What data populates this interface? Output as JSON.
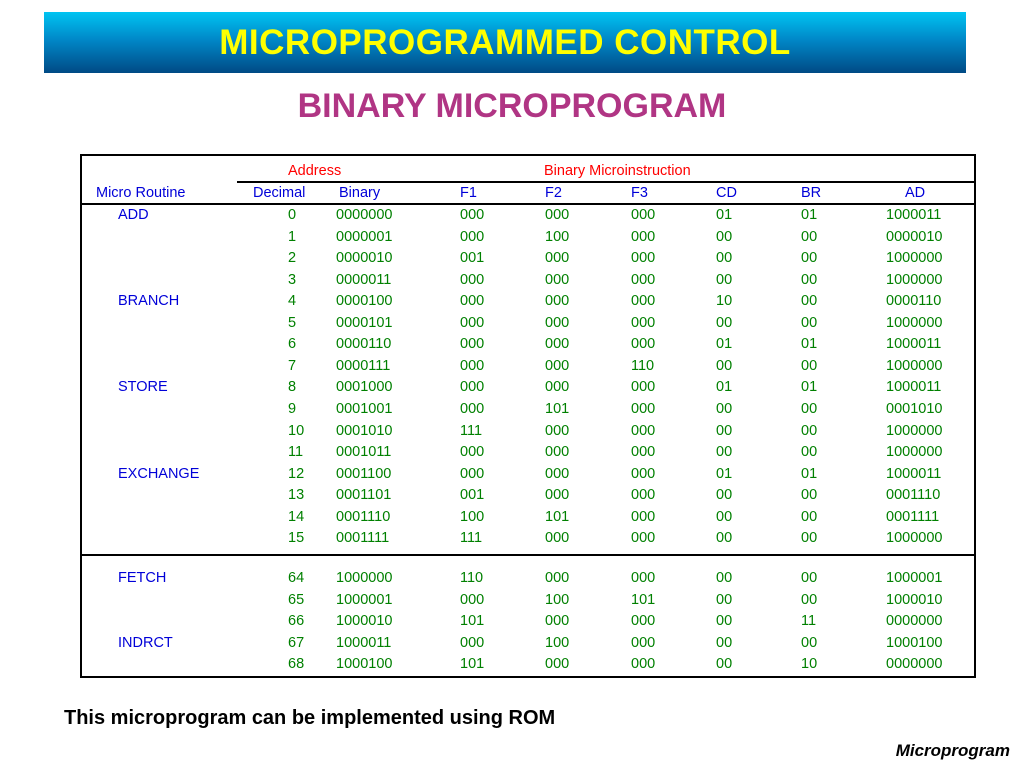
{
  "header": {
    "title": "MICROPROGRAMMED  CONTROL"
  },
  "subtitle": "BINARY  MICROPROGRAM",
  "table": {
    "group_headers": {
      "address": "Address",
      "binary_microinstruction": "Binary Microinstruction"
    },
    "columns": {
      "routine": "Micro Routine",
      "decimal": "Decimal",
      "binary": "Binary",
      "f1": "F1",
      "f2": "F2",
      "f3": "F3",
      "cd": "CD",
      "br": "BR",
      "ad": "AD"
    },
    "rows": [
      {
        "routine": "ADD",
        "decimal": "0",
        "binary": "0000000",
        "f1": "000",
        "f2": "000",
        "f3": "000",
        "cd": "01",
        "br": "01",
        "ad": "1000011"
      },
      {
        "routine": "",
        "decimal": "1",
        "binary": "0000001",
        "f1": "000",
        "f2": "100",
        "f3": "000",
        "cd": "00",
        "br": "00",
        "ad": "0000010"
      },
      {
        "routine": "",
        "decimal": "2",
        "binary": "0000010",
        "f1": "001",
        "f2": "000",
        "f3": "000",
        "cd": "00",
        "br": "00",
        "ad": "1000000"
      },
      {
        "routine": "",
        "decimal": "3",
        "binary": "0000011",
        "f1": "000",
        "f2": "000",
        "f3": "000",
        "cd": "00",
        "br": "00",
        "ad": "1000000"
      },
      {
        "routine": "BRANCH",
        "decimal": "4",
        "binary": "0000100",
        "f1": "000",
        "f2": "000",
        "f3": "000",
        "cd": "10",
        "br": "00",
        "ad": "0000110"
      },
      {
        "routine": "",
        "decimal": "5",
        "binary": "0000101",
        "f1": "000",
        "f2": "000",
        "f3": "000",
        "cd": "00",
        "br": "00",
        "ad": "1000000"
      },
      {
        "routine": "",
        "decimal": "6",
        "binary": "0000110",
        "f1": "000",
        "f2": "000",
        "f3": "000",
        "cd": "01",
        "br": "01",
        "ad": "1000011"
      },
      {
        "routine": "",
        "decimal": "7",
        "binary": "0000111",
        "f1": "000",
        "f2": "000",
        "f3": "110",
        "cd": "00",
        "br": "00",
        "ad": "1000000"
      },
      {
        "routine": "STORE",
        "decimal": "8",
        "binary": "0001000",
        "f1": "000",
        "f2": "000",
        "f3": "000",
        "cd": "01",
        "br": "01",
        "ad": "1000011"
      },
      {
        "routine": "",
        "decimal": "9",
        "binary": "0001001",
        "f1": "000",
        "f2": "101",
        "f3": "000",
        "cd": "00",
        "br": "00",
        "ad": "0001010"
      },
      {
        "routine": "",
        "decimal": "10",
        "binary": "0001010",
        "f1": "111",
        "f2": "000",
        "f3": "000",
        "cd": "00",
        "br": "00",
        "ad": "1000000"
      },
      {
        "routine": "",
        "decimal": "11",
        "binary": "0001011",
        "f1": "000",
        "f2": "000",
        "f3": "000",
        "cd": "00",
        "br": "00",
        "ad": "1000000"
      },
      {
        "routine": "EXCHANGE",
        "decimal": "12",
        "binary": "0001100",
        "f1": "000",
        "f2": "000",
        "f3": "000",
        "cd": "01",
        "br": "01",
        "ad": "1000011"
      },
      {
        "routine": "",
        "decimal": "13",
        "binary": "0001101",
        "f1": "001",
        "f2": "000",
        "f3": "000",
        "cd": "00",
        "br": "00",
        "ad": "0001110"
      },
      {
        "routine": "",
        "decimal": "14",
        "binary": "0001110",
        "f1": "100",
        "f2": "101",
        "f3": "000",
        "cd": "00",
        "br": "00",
        "ad": "0001111"
      },
      {
        "routine": "",
        "decimal": "15",
        "binary": "0001111",
        "f1": "111",
        "f2": "000",
        "f3": "000",
        "cd": "00",
        "br": "00",
        "ad": "1000000"
      },
      {
        "routine": "FETCH",
        "decimal": "64",
        "binary": "1000000",
        "f1": "110",
        "f2": "000",
        "f3": "000",
        "cd": "00",
        "br": "00",
        "ad": "1000001"
      },
      {
        "routine": "",
        "decimal": "65",
        "binary": "1000001",
        "f1": "000",
        "f2": "100",
        "f3": "101",
        "cd": "00",
        "br": "00",
        "ad": "1000010"
      },
      {
        "routine": "",
        "decimal": "66",
        "binary": "1000010",
        "f1": "101",
        "f2": "000",
        "f3": "000",
        "cd": "00",
        "br": "11",
        "ad": "0000000"
      },
      {
        "routine": "INDRCT",
        "decimal": "67",
        "binary": "1000011",
        "f1": "000",
        "f2": "100",
        "f3": "000",
        "cd": "00",
        "br": "00",
        "ad": "1000100"
      },
      {
        "routine": "",
        "decimal": "68",
        "binary": "1000100",
        "f1": "101",
        "f2": "000",
        "f3": "000",
        "cd": "00",
        "br": "10",
        "ad": "0000000"
      }
    ]
  },
  "note": "This microprogram can be implemented using ROM",
  "footer": "Microprogram",
  "colors": {
    "title_text": "#ffff00",
    "banner_top": "#00c4f2",
    "banner_bottom": "#004a85",
    "subtitle_text": "#b03584",
    "group_header_text": "#ff0000",
    "column_header_text": "#0000d8",
    "routine_text": "#0000d8",
    "value_text": "#008000"
  }
}
